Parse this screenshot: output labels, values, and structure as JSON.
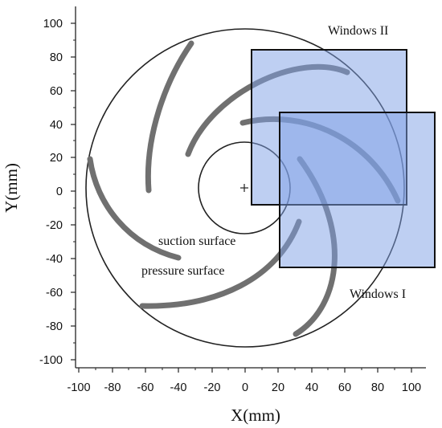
{
  "axes": {
    "x_title": "X(mm)",
    "y_title": "Y(mm)",
    "x_ticks": [
      "-100",
      "-80",
      "-60",
      "-40",
      "-20",
      "0",
      "20",
      "40",
      "60",
      "80",
      "100"
    ],
    "y_ticks": [
      "100",
      "80",
      "60",
      "40",
      "20",
      "0",
      "-20",
      "-40",
      "-60",
      "-80",
      "-100"
    ]
  },
  "annotations": {
    "window_2": "Windows II",
    "window_1": "Windows I",
    "suction": "suction surface",
    "pressure": "pressure surface"
  },
  "colors": {
    "window_fill": "#7d9fe6",
    "blade": "#707070",
    "outline": "#222222"
  }
}
